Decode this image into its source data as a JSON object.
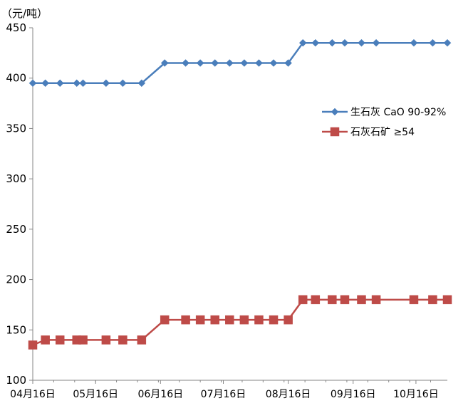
{
  "chart_data": {
    "type": "line",
    "unit_label": "（元/吨）",
    "xlabel": "",
    "ylabel": "",
    "ylim": [
      100,
      450
    ],
    "yticks": [
      100,
      150,
      200,
      250,
      300,
      350,
      400,
      450
    ],
    "xlim": [
      "2021-04-16",
      "2021-10-31"
    ],
    "xticks": [
      {
        "date": "2021-04-16",
        "label": "04月16日"
      },
      {
        "date": "2021-05-16",
        "label": "05月16日"
      },
      {
        "date": "2021-06-16",
        "label": "06月16日"
      },
      {
        "date": "2021-07-16",
        "label": "07月16日"
      },
      {
        "date": "2021-08-16",
        "label": "08月16日"
      },
      {
        "date": "2021-09-16",
        "label": "09月16日"
      },
      {
        "date": "2021-10-16",
        "label": "10月16日"
      }
    ],
    "grid": false,
    "legend_position": "right",
    "series": [
      {
        "name": "生石灰 CaO 90-92%",
        "color": "#4a7ebb",
        "marker": "diamond",
        "x": [
          "2021-04-16",
          "2021-04-22",
          "2021-04-29",
          "2021-05-07",
          "2021-05-10",
          "2021-05-21",
          "2021-05-29",
          "2021-06-07",
          "2021-06-18",
          "2021-06-28",
          "2021-07-05",
          "2021-07-12",
          "2021-07-19",
          "2021-07-26",
          "2021-08-02",
          "2021-08-09",
          "2021-08-16",
          "2021-08-23",
          "2021-08-29",
          "2021-09-06",
          "2021-09-12",
          "2021-09-20",
          "2021-09-27",
          "2021-10-15",
          "2021-10-24",
          "2021-10-31"
        ],
        "y": [
          395,
          395,
          395,
          395,
          395,
          395,
          395,
          395,
          415,
          415,
          415,
          415,
          415,
          415,
          415,
          415,
          415,
          435,
          435,
          435,
          435,
          435,
          435,
          435,
          435,
          435
        ]
      },
      {
        "name": "石灰石矿 ≥54",
        "color": "#be4b48",
        "marker": "square",
        "x": [
          "2021-04-16",
          "2021-04-22",
          "2021-04-29",
          "2021-05-07",
          "2021-05-10",
          "2021-05-21",
          "2021-05-29",
          "2021-06-07",
          "2021-06-18",
          "2021-06-28",
          "2021-07-05",
          "2021-07-12",
          "2021-07-19",
          "2021-07-26",
          "2021-08-02",
          "2021-08-09",
          "2021-08-16",
          "2021-08-23",
          "2021-08-29",
          "2021-09-06",
          "2021-09-12",
          "2021-09-20",
          "2021-09-27",
          "2021-10-15",
          "2021-10-24",
          "2021-10-31"
        ],
        "y": [
          135,
          140,
          140,
          140,
          140,
          140,
          140,
          140,
          160,
          160,
          160,
          160,
          160,
          160,
          160,
          160,
          160,
          180,
          180,
          180,
          180,
          180,
          180,
          180,
          180,
          180
        ]
      }
    ]
  }
}
